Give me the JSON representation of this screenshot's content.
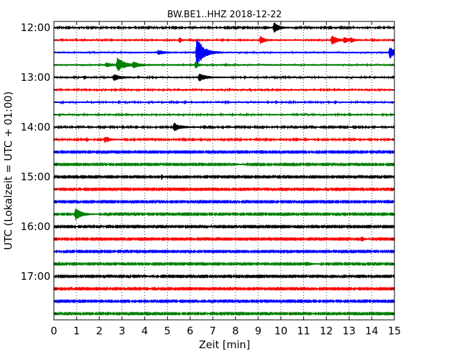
{
  "chart_data": {
    "type": "line",
    "subtype": "helicorder",
    "title": "BW.BE1..HHZ 2018-12-22",
    "xlabel": "Zeit  [min]",
    "ylabel": "UTC (Lokalzeit = UTC + 01:00)",
    "xlim": [
      0,
      15
    ],
    "x_ticks": [
      "0",
      "1",
      "2",
      "3",
      "4",
      "5",
      "6",
      "7",
      "8",
      "9",
      "10",
      "11",
      "12",
      "13",
      "14",
      "15"
    ],
    "y_ticks": [
      "12:00",
      "13:00",
      "14:00",
      "15:00",
      "16:00",
      "17:00"
    ],
    "grid": "vertical dotted",
    "trace_colors": [
      "#000000",
      "#ff0000",
      "#0000ff",
      "#008000"
    ],
    "row_interval_min": 15,
    "rows": [
      {
        "start": "12:00",
        "noise": 0.7,
        "events": [
          {
            "t": 9.7,
            "amp": 8,
            "dur": 0.35
          },
          {
            "t": 9.3,
            "amp": 3,
            "dur": 0.2
          }
        ]
      },
      {
        "start": "12:15",
        "noise": 0.8,
        "events": [
          {
            "t": 5.55,
            "amp": 5,
            "dur": 0.1
          },
          {
            "t": 9.1,
            "amp": 5,
            "dur": 0.3
          },
          {
            "t": 12.25,
            "amp": 7,
            "dur": 0.4
          },
          {
            "t": 12.8,
            "amp": 4,
            "dur": 0.3
          },
          {
            "t": 13.1,
            "amp": 3,
            "dur": 0.2
          }
        ]
      },
      {
        "start": "12:30",
        "noise": 0.9,
        "events": [
          {
            "t": 6.3,
            "amp": 23,
            "dur": 0.45
          },
          {
            "t": 14.8,
            "amp": 8,
            "dur": 0.4
          },
          {
            "t": 4.6,
            "amp": 3,
            "dur": 0.4
          }
        ]
      },
      {
        "start": "12:45",
        "noise": 0.9,
        "events": [
          {
            "t": 2.8,
            "amp": 10,
            "dur": 0.5
          },
          {
            "t": 3.5,
            "amp": 4,
            "dur": 0.4
          },
          {
            "t": 2.3,
            "amp": 3,
            "dur": 0.4
          },
          {
            "t": 6.25,
            "amp": 5,
            "dur": 0.15
          }
        ]
      },
      {
        "start": "13:00",
        "noise": 0.8,
        "events": [
          {
            "t": 2.65,
            "amp": 5,
            "dur": 0.4
          },
          {
            "t": 6.4,
            "amp": 6,
            "dur": 0.4
          },
          {
            "t": 1.35,
            "amp": 3,
            "dur": 0.1
          }
        ]
      },
      {
        "start": "13:15",
        "noise": 0.8,
        "events": []
      },
      {
        "start": "13:30",
        "noise": 0.8,
        "events": []
      },
      {
        "start": "13:45",
        "noise": 0.8,
        "events": []
      },
      {
        "start": "14:00",
        "noise": 0.7,
        "events": [
          {
            "t": 5.3,
            "amp": 6,
            "dur": 0.45
          }
        ]
      },
      {
        "start": "14:15",
        "noise": 0.7,
        "events": [
          {
            "t": 2.25,
            "amp": 5,
            "dur": 0.35
          },
          {
            "t": 1.45,
            "amp": 3,
            "dur": 0.1
          },
          {
            "t": 10.7,
            "amp": 3,
            "dur": 0.1
          }
        ]
      },
      {
        "start": "14:30",
        "noise": 0.6,
        "events": []
      },
      {
        "start": "14:45",
        "noise": 0.6,
        "events": [
          {
            "t": 7.9,
            "amp": 2,
            "dur": 0.3
          }
        ]
      },
      {
        "start": "15:00",
        "noise": 0.6,
        "events": [
          {
            "t": 4.75,
            "amp": 4,
            "dur": 0.1
          }
        ]
      },
      {
        "start": "15:15",
        "noise": 0.6,
        "events": [
          {
            "t": 11.7,
            "amp": 2,
            "dur": 0.1
          }
        ]
      },
      {
        "start": "15:30",
        "noise": 0.6,
        "events": []
      },
      {
        "start": "15:45",
        "noise": 0.6,
        "events": [
          {
            "t": 0.95,
            "amp": 9,
            "dur": 0.45
          }
        ]
      },
      {
        "start": "16:00",
        "noise": 0.6,
        "events": []
      },
      {
        "start": "16:15",
        "noise": 0.6,
        "events": [
          {
            "t": 13.55,
            "amp": 4,
            "dur": 0.2
          }
        ]
      },
      {
        "start": "16:30",
        "noise": 0.6,
        "events": []
      },
      {
        "start": "16:45",
        "noise": 0.6,
        "events": [
          {
            "t": 11.1,
            "amp": 3,
            "dur": 0.4
          }
        ]
      },
      {
        "start": "17:00",
        "noise": 0.6,
        "events": [
          {
            "t": 4.0,
            "amp": 2,
            "dur": 0.2
          }
        ]
      },
      {
        "start": "17:15",
        "noise": 0.6,
        "events": [
          {
            "t": 4.1,
            "amp": 3,
            "dur": 0.1
          }
        ]
      },
      {
        "start": "17:30",
        "noise": 0.6,
        "events": []
      },
      {
        "start": "17:45",
        "noise": 0.6,
        "events": []
      }
    ]
  }
}
